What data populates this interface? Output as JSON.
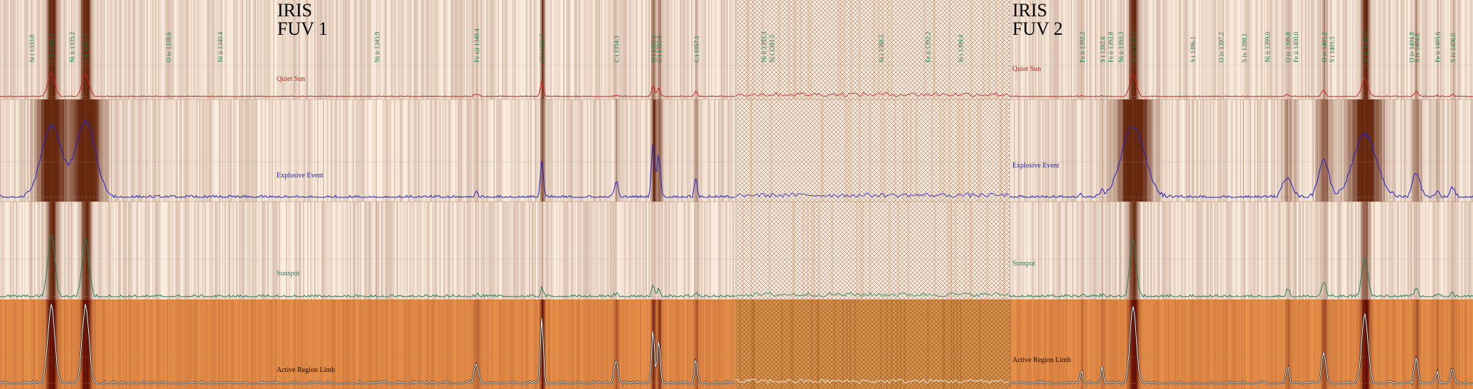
{
  "panels": [
    {
      "title_line1": "IRIS",
      "title_line2": "FUV 1"
    },
    {
      "title_line1": "IRIS",
      "title_line2": "FUV 2"
    }
  ],
  "chart_data": {
    "type": "line",
    "description_axis": "wavelength",
    "rows": [
      {
        "name": "Quiet Sun",
        "color": "#cc2020",
        "bg": "light"
      },
      {
        "name": "Explosive Event",
        "color": "#2020cc",
        "bg": "light"
      },
      {
        "name": "Sunspot",
        "color": "#208060",
        "bg": "light"
      },
      {
        "name": "Active Region Limb",
        "color": "#111111",
        "bg": "orange"
      }
    ],
    "fuv1": {
      "xlim": [
        1332.7,
        1358.5
      ],
      "lines": [
        {
          "label": "Si i 1333.8",
          "w": 1333.8
        },
        {
          "label": "C ii 1334.5",
          "w": 1334.5
        },
        {
          "label": "Ni ii 1335.2",
          "w": 1335.2
        },
        {
          "label": "C ii 1335.7",
          "w": 1335.7
        },
        {
          "label": "O iv 1338.6",
          "w": 1338.6
        },
        {
          "label": "Ni ii 1340.4",
          "w": 1340.4
        },
        {
          "label": "Ni ii 1345.9",
          "w": 1345.9
        },
        {
          "label": "Fe xii 1349.4",
          "w": 1349.4
        },
        {
          "label": "Cl i 1351.7",
          "w": 1351.7
        },
        {
          "label": "C i 1354.3",
          "w": 1354.3
        },
        {
          "label": "O i 1355.6",
          "w": 1355.6
        },
        {
          "label": "C i 1355.8",
          "w": 1355.8
        },
        {
          "label": "C i 1357.1",
          "w": 1357.1
        }
      ],
      "peaks": [
        {
          "w": 1334.5,
          "qs": 0.9,
          "ee": 0.85,
          "ss": 0.75,
          "ar": 0.95,
          "wd": 0.12,
          "eew": 0.35
        },
        {
          "w": 1335.7,
          "qs": 0.9,
          "ee": 0.9,
          "ss": 0.7,
          "ar": 0.95,
          "wd": 0.12,
          "eew": 0.35
        },
        {
          "w": 1351.7,
          "qs": 0.6,
          "ee": 0.45,
          "ss": 0.12,
          "ar": 0.8,
          "wd": 0.05,
          "eew": 0.05
        },
        {
          "w": 1354.3,
          "qs": 0.05,
          "ee": 0.2,
          "ss": 0.04,
          "ar": 0.3,
          "wd": 0.06,
          "eew": 0.06
        },
        {
          "w": 1355.6,
          "qs": 0.45,
          "ee": 0.65,
          "ss": 0.12,
          "ar": 0.65,
          "wd": 0.05,
          "eew": 0.06
        },
        {
          "w": 1355.8,
          "qs": 0.35,
          "ee": 0.5,
          "ss": 0.1,
          "ar": 0.55,
          "wd": 0.05,
          "eew": 0.06
        },
        {
          "w": 1357.1,
          "qs": 0.2,
          "ee": 0.25,
          "ss": 0.06,
          "ar": 0.3,
          "wd": 0.05,
          "eew": 0.05
        },
        {
          "w": 1349.4,
          "qs": 0.1,
          "ee": 0.06,
          "ss": 0.03,
          "ar": 0.22,
          "wd": 0.08,
          "eew": 0.08
        }
      ]
    },
    "gap": {
      "labels": [
        {
          "label": "Ni ii 1393.3",
          "w": 0.1
        },
        {
          "label": "Si i 1381.5",
          "w": 0.13
        },
        {
          "label": "Si i 1388.5",
          "w": 0.53
        },
        {
          "label": "Fe ii 1392.2",
          "w": 0.7
        },
        {
          "label": "Si i 1398.4",
          "w": 0.82
        }
      ]
    },
    "fuv2": {
      "xlim": [
        1389.0,
        1407.0
      ],
      "lines": [
        {
          "label": "Fe ii 1392.2",
          "w": 1391.8
        },
        {
          "label": "S i 1392.6",
          "w": 1392.6
        },
        {
          "label": "Fe ii 1392.8",
          "w": 1392.9
        },
        {
          "label": "Ni ii 1393.3",
          "w": 1393.3
        },
        {
          "label": "Si iv 1393.8",
          "w": 1393.8
        },
        {
          "label": "S i 1396.1",
          "w": 1396.1
        },
        {
          "label": "O iv 1397.2",
          "w": 1397.2
        },
        {
          "label": "S iv 1398.1",
          "w": 1398.1
        },
        {
          "label": "Ni ii 1399.0",
          "w": 1399.0
        },
        {
          "label": "O iv 1399.8",
          "w": 1399.8
        },
        {
          "label": "Fe ii 1400.0",
          "w": 1400.1
        },
        {
          "label": "O iv 1401.2",
          "w": 1401.2
        },
        {
          "label": "S i 1401.5",
          "w": 1401.5
        },
        {
          "label": "Si iv 1402.8",
          "w": 1402.8
        },
        {
          "label": "O iv 1404.8",
          "w": 1404.6
        },
        {
          "label": "S iv 1404.8",
          "w": 1404.8
        },
        {
          "label": "Fe ii 1405.6",
          "w": 1405.6
        },
        {
          "label": "S iv 1406.0",
          "w": 1406.2
        }
      ],
      "peaks": [
        {
          "w": 1393.8,
          "qs": 0.9,
          "ee": 0.85,
          "ss": 0.7,
          "ar": 0.95,
          "wd": 0.12,
          "eew": 0.45
        },
        {
          "w": 1402.8,
          "qs": 0.7,
          "ee": 0.75,
          "ss": 0.45,
          "ar": 0.85,
          "wd": 0.12,
          "eew": 0.45
        },
        {
          "w": 1401.2,
          "qs": 0.25,
          "ee": 0.45,
          "ss": 0.18,
          "ar": 0.4,
          "wd": 0.08,
          "eew": 0.2
        },
        {
          "w": 1399.8,
          "qs": 0.08,
          "ee": 0.25,
          "ss": 0.1,
          "ar": 0.22,
          "wd": 0.07,
          "eew": 0.18
        },
        {
          "w": 1404.8,
          "qs": 0.2,
          "ee": 0.3,
          "ss": 0.1,
          "ar": 0.3,
          "wd": 0.07,
          "eew": 0.15
        },
        {
          "w": 1406.2,
          "qs": 0.1,
          "ee": 0.12,
          "ss": 0.04,
          "ar": 0.18,
          "wd": 0.06,
          "eew": 0.1
        },
        {
          "w": 1405.6,
          "qs": 0.05,
          "ee": 0.08,
          "ss": 0.03,
          "ar": 0.15,
          "wd": 0.05,
          "eew": 0.08
        },
        {
          "w": 1392.6,
          "qs": 0.05,
          "ee": 0.06,
          "ss": 0.03,
          "ar": 0.2,
          "wd": 0.05,
          "eew": 0.05
        },
        {
          "w": 1391.8,
          "qs": 0.03,
          "ee": 0.04,
          "ss": 0.02,
          "ar": 0.15,
          "wd": 0.05,
          "eew": 0.05
        }
      ]
    }
  }
}
